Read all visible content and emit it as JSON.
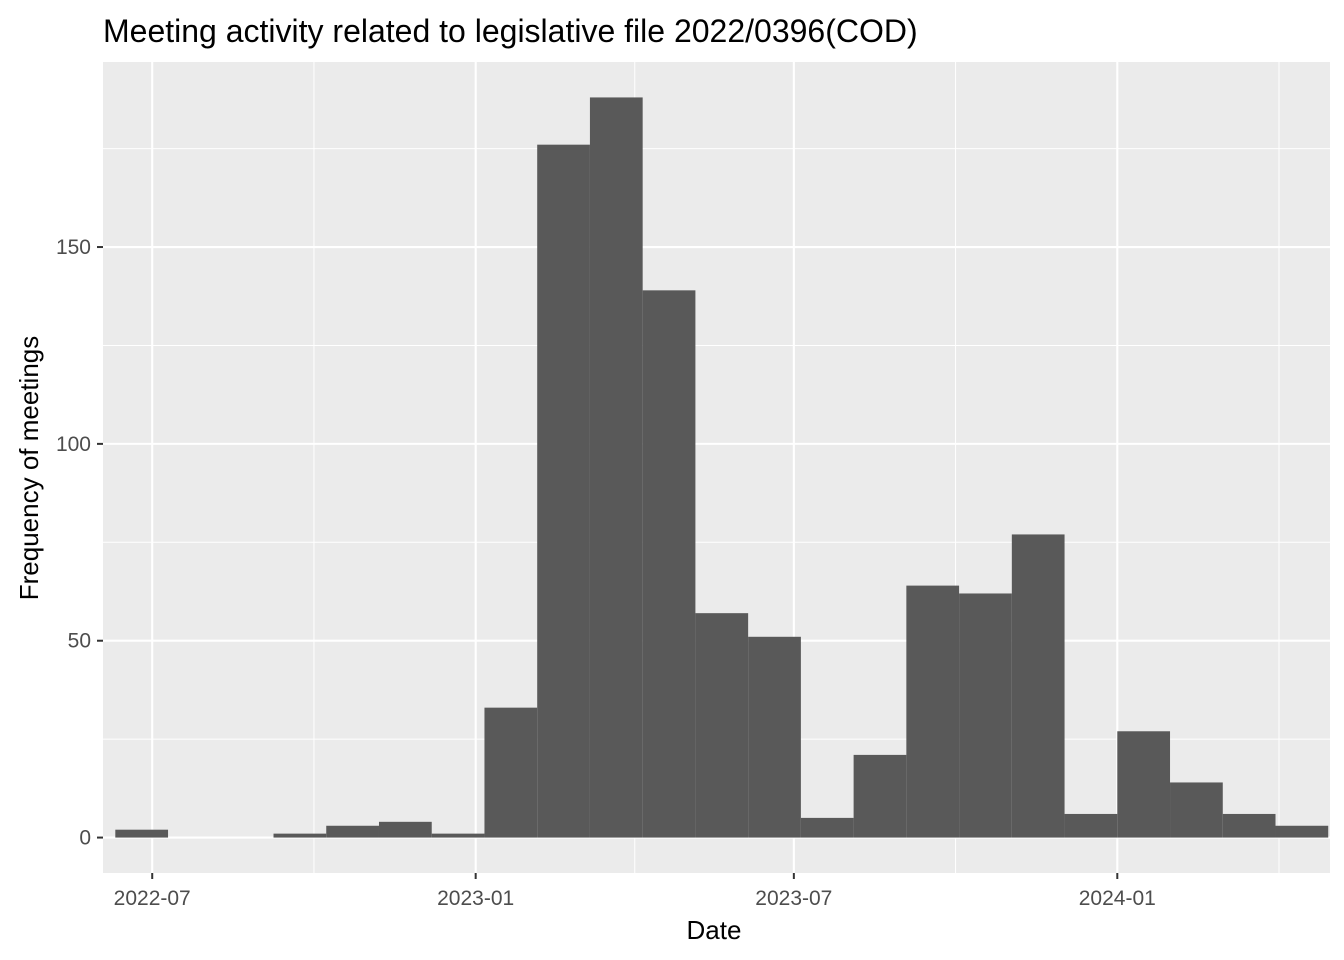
{
  "chart_data": {
    "type": "bar",
    "title": "Meeting activity related to legislative file 2022/0396(COD)",
    "xlabel": "Date",
    "ylabel": "Frequency of meetings",
    "x_ticks": [
      "2022-07",
      "2023-01",
      "2023-07",
      "2024-01"
    ],
    "y_ticks": [
      0,
      50,
      100,
      150
    ],
    "ylim": [
      -9,
      197
    ],
    "xlim": [
      "2022-06-03",
      "2024-05-01"
    ],
    "bin_width_days": 30,
    "bins": [
      {
        "start": "2022-06-10",
        "value": 2
      },
      {
        "start": "2022-07-10",
        "value": 0
      },
      {
        "start": "2022-08-09",
        "value": 0
      },
      {
        "start": "2022-09-08",
        "value": 1
      },
      {
        "start": "2022-10-08",
        "value": 3
      },
      {
        "start": "2022-11-07",
        "value": 4
      },
      {
        "start": "2022-12-07",
        "value": 1
      },
      {
        "start": "2023-01-06",
        "value": 33
      },
      {
        "start": "2023-02-05",
        "value": 176
      },
      {
        "start": "2023-03-07",
        "value": 188
      },
      {
        "start": "2023-04-06",
        "value": 139
      },
      {
        "start": "2023-05-06",
        "value": 57
      },
      {
        "start": "2023-06-05",
        "value": 51
      },
      {
        "start": "2023-07-05",
        "value": 5
      },
      {
        "start": "2023-08-04",
        "value": 21
      },
      {
        "start": "2023-09-03",
        "value": 64
      },
      {
        "start": "2023-10-03",
        "value": 62
      },
      {
        "start": "2023-11-02",
        "value": 77
      },
      {
        "start": "2023-12-02",
        "value": 6
      },
      {
        "start": "2024-01-01",
        "value": 27
      },
      {
        "start": "2024-01-31",
        "value": 14
      },
      {
        "start": "2024-03-01",
        "value": 6
      },
      {
        "start": "2024-03-31",
        "value": 3
      }
    ],
    "grid": true,
    "legend": "none",
    "colors": {
      "panel_background": "#ebebeb",
      "bar_fill": "#595959",
      "grid": "#ffffff",
      "tick_label": "#4d4d4d"
    }
  }
}
